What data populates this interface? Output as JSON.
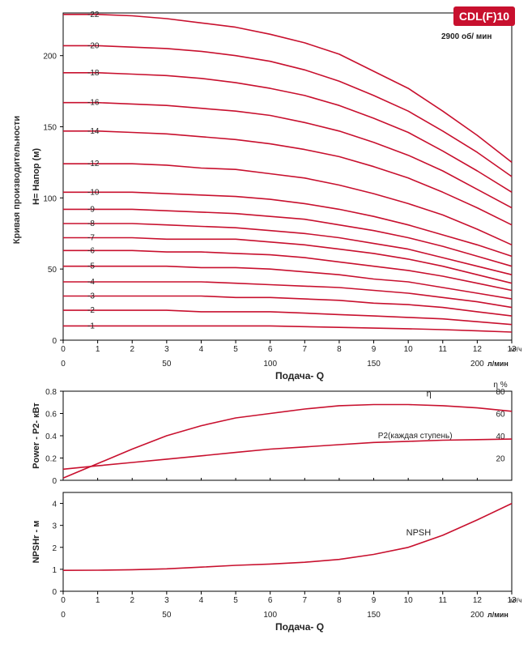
{
  "model_badge": "CDL(F)10",
  "speed_label": "2900 об/ мин",
  "side_label": "Кривая производительности",
  "colors": {
    "curve": "#c8102e",
    "axis": "#000000",
    "grid": "#cccccc",
    "text": "#222222",
    "badge": "#c8102e"
  },
  "chart_data": [
    {
      "type": "line",
      "ylabel": "H= Напор (м)",
      "xlabel": "Подача- Q",
      "x_units_top": "м³/ч",
      "x_units_bottom": "л/мин",
      "xlim": [
        0,
        13
      ],
      "ylim": [
        0,
        230
      ],
      "x_ticks": [
        "0",
        "1",
        "2",
        "3",
        "4",
        "5",
        "6",
        "7",
        "8",
        "9",
        "10",
        "11",
        "12",
        "13"
      ],
      "x_ticks_lpm": [
        "0",
        "50",
        "100",
        "150",
        "200"
      ],
      "y_ticks": [
        "0",
        "50",
        "100",
        "150",
        "200"
      ],
      "series": [
        {
          "name": "-22",
          "x": [
            0,
            1,
            2,
            3,
            4,
            5,
            6,
            7,
            8,
            9,
            10,
            11,
            12,
            13
          ],
          "y": [
            229,
            229,
            228,
            226,
            223,
            220,
            215,
            209,
            201,
            189,
            177,
            161,
            144,
            125
          ]
        },
        {
          "name": "-20",
          "x": [
            0,
            1,
            2,
            3,
            4,
            5,
            6,
            7,
            8,
            9,
            10,
            11,
            12,
            13
          ],
          "y": [
            207,
            207,
            206,
            205,
            203,
            200,
            196,
            190,
            182,
            172,
            161,
            147,
            132,
            115
          ]
        },
        {
          "name": "-18",
          "x": [
            0,
            1,
            2,
            3,
            4,
            5,
            6,
            7,
            8,
            9,
            10,
            11,
            12,
            13
          ],
          "y": [
            188,
            188,
            187,
            186,
            184,
            181,
            177,
            172,
            165,
            156,
            146,
            133,
            119,
            104
          ]
        },
        {
          "name": "-16",
          "x": [
            0,
            1,
            2,
            3,
            4,
            5,
            6,
            7,
            8,
            9,
            10,
            11,
            12,
            13
          ],
          "y": [
            167,
            167,
            166,
            165,
            163,
            161,
            158,
            153,
            147,
            139,
            130,
            119,
            106,
            93
          ]
        },
        {
          "name": "-14",
          "x": [
            0,
            1,
            2,
            3,
            4,
            5,
            6,
            7,
            8,
            9,
            10,
            11,
            12,
            13
          ],
          "y": [
            147,
            147,
            146,
            145,
            143,
            141,
            138,
            134,
            129,
            122,
            114,
            104,
            93,
            81
          ]
        },
        {
          "name": "-12",
          "x": [
            0,
            1,
            2,
            3,
            4,
            5,
            6,
            7,
            8,
            9,
            10,
            11,
            12,
            13
          ],
          "y": [
            124,
            124,
            124,
            123,
            121,
            120,
            117,
            114,
            109,
            103,
            96,
            88,
            78,
            67
          ]
        },
        {
          "name": "-10",
          "x": [
            0,
            1,
            2,
            3,
            4,
            5,
            6,
            7,
            8,
            9,
            10,
            11,
            12,
            13
          ],
          "y": [
            104,
            104,
            104,
            103,
            102,
            101,
            99,
            96,
            92,
            87,
            81,
            74,
            67,
            59
          ]
        },
        {
          "name": "-9",
          "x": [
            0,
            1,
            2,
            3,
            4,
            5,
            6,
            7,
            8,
            9,
            10,
            11,
            12,
            13
          ],
          "y": [
            92,
            92,
            92,
            91,
            90,
            89,
            87,
            85,
            81,
            77,
            72,
            66,
            59,
            52
          ]
        },
        {
          "name": "-8",
          "x": [
            0,
            1,
            2,
            3,
            4,
            5,
            6,
            7,
            8,
            9,
            10,
            11,
            12,
            13
          ],
          "y": [
            82,
            82,
            82,
            81,
            80,
            79,
            77,
            75,
            72,
            68,
            64,
            58,
            52,
            46
          ]
        },
        {
          "name": "-7",
          "x": [
            0,
            1,
            2,
            3,
            4,
            5,
            6,
            7,
            8,
            9,
            10,
            11,
            12,
            13
          ],
          "y": [
            72,
            72,
            72,
            71,
            71,
            71,
            69,
            67,
            64,
            61,
            57,
            52,
            46,
            40
          ]
        },
        {
          "name": "-6",
          "x": [
            0,
            1,
            2,
            3,
            4,
            5,
            6,
            7,
            8,
            9,
            10,
            11,
            12,
            13
          ],
          "y": [
            63,
            63,
            63,
            62,
            62,
            61,
            60,
            58,
            55,
            52,
            49,
            45,
            40,
            35
          ]
        },
        {
          "name": "-5",
          "x": [
            0,
            1,
            2,
            3,
            4,
            5,
            6,
            7,
            8,
            9,
            10,
            11,
            12,
            13
          ],
          "y": [
            52,
            52,
            52,
            52,
            51,
            51,
            50,
            48,
            46,
            43,
            41,
            37,
            33,
            29
          ]
        },
        {
          "name": "-4",
          "x": [
            0,
            1,
            2,
            3,
            4,
            5,
            6,
            7,
            8,
            9,
            10,
            11,
            12,
            13
          ],
          "y": [
            41,
            41,
            41,
            41,
            41,
            40,
            39,
            38,
            37,
            35,
            33,
            30,
            27,
            23
          ]
        },
        {
          "name": "-3",
          "x": [
            0,
            1,
            2,
            3,
            4,
            5,
            6,
            7,
            8,
            9,
            10,
            11,
            12,
            13
          ],
          "y": [
            31,
            31,
            31,
            31,
            31,
            30,
            30,
            29,
            28,
            26,
            25,
            23,
            20,
            17
          ]
        },
        {
          "name": "-2",
          "x": [
            0,
            1,
            2,
            3,
            4,
            5,
            6,
            7,
            8,
            9,
            10,
            11,
            12,
            13
          ],
          "y": [
            21,
            21,
            21,
            21,
            20,
            20,
            20,
            19,
            18,
            17,
            16,
            15,
            13,
            11
          ]
        },
        {
          "name": "-1",
          "x": [
            0,
            1,
            2,
            3,
            4,
            5,
            6,
            7,
            8,
            9,
            10,
            11,
            12,
            13
          ],
          "y": [
            10,
            10,
            10,
            10,
            10,
            10,
            10,
            9.5,
            9,
            8.5,
            8,
            7.4,
            6.6,
            5.7
          ]
        }
      ]
    },
    {
      "type": "line",
      "ylabel": "Power - P2- кВт",
      "y2label": "η %",
      "xlim": [
        0,
        13
      ],
      "ylim": [
        0,
        0.8
      ],
      "y2lim": [
        0,
        80
      ],
      "y_ticks": [
        "0",
        "0.2",
        "0.4",
        "0.6",
        "0.8"
      ],
      "y2_ticks": [
        "20",
        "40",
        "60",
        "80"
      ],
      "series": [
        {
          "name": "η",
          "axis": "right",
          "x": [
            0,
            1,
            2,
            3,
            4,
            5,
            6,
            7,
            8,
            9,
            10,
            11,
            12,
            13
          ],
          "y": [
            2,
            15,
            28,
            40,
            49,
            56,
            60,
            64,
            67,
            68,
            68,
            67,
            65,
            62
          ]
        },
        {
          "name": "P2(каждая ступень)",
          "axis": "left",
          "x": [
            0,
            1,
            2,
            3,
            4,
            5,
            6,
            7,
            8,
            9,
            10,
            11,
            12,
            13
          ],
          "y": [
            0.1,
            0.13,
            0.16,
            0.19,
            0.22,
            0.25,
            0.28,
            0.3,
            0.32,
            0.34,
            0.35,
            0.36,
            0.365,
            0.37
          ]
        }
      ]
    },
    {
      "type": "line",
      "ylabel": "NPSHr - м",
      "xlabel": "Подача- Q",
      "x_units_top": "м³/ч",
      "x_units_bottom": "л/мин",
      "xlim": [
        0,
        13
      ],
      "ylim": [
        0,
        4.5
      ],
      "y_ticks": [
        "0",
        "1",
        "2",
        "3",
        "4"
      ],
      "series": [
        {
          "name": "NPSH",
          "x": [
            0,
            1,
            2,
            3,
            4,
            5,
            6,
            7,
            8,
            9,
            10,
            11,
            12,
            13
          ],
          "y": [
            0.95,
            0.96,
            0.98,
            1.02,
            1.1,
            1.18,
            1.24,
            1.32,
            1.45,
            1.68,
            2.0,
            2.55,
            3.25,
            4.0
          ]
        }
      ]
    }
  ]
}
